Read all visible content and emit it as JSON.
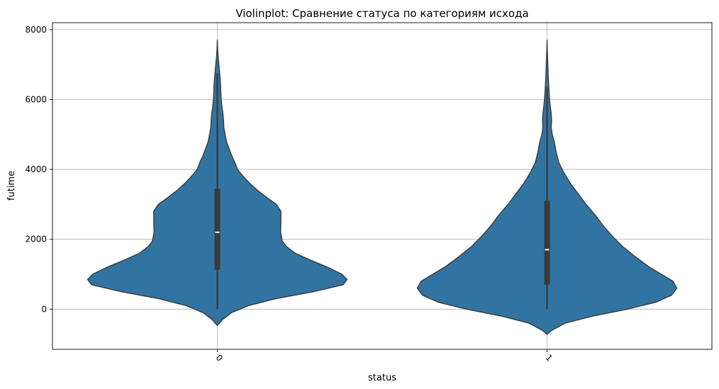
{
  "chart_data": {
    "type": "violin",
    "title": "Violinplot: Сравнение статуса по категориям исхода",
    "xlabel": "status",
    "ylabel": "futime",
    "categories": [
      "0",
      "1"
    ],
    "ylim": [
      -1150,
      8200
    ],
    "yticks": [
      0,
      2000,
      4000,
      6000,
      8000
    ],
    "grid": true,
    "color": "#3274a1",
    "edge_color": "#3a3a3a",
    "violins": [
      {
        "category": "0",
        "quartiles": [
          1130,
          2200,
          3450
        ],
        "whiskers": [
          0,
          6750
        ],
        "range": [
          -470,
          7700
        ],
        "density": [
          [
            -470,
            0.0
          ],
          [
            -300,
            0.04
          ],
          [
            -100,
            0.11
          ],
          [
            100,
            0.24
          ],
          [
            300,
            0.45
          ],
          [
            500,
            0.74
          ],
          [
            700,
            0.97
          ],
          [
            850,
            1.0
          ],
          [
            1000,
            0.96
          ],
          [
            1200,
            0.85
          ],
          [
            1400,
            0.72
          ],
          [
            1600,
            0.6
          ],
          [
            1800,
            0.53
          ],
          [
            1950,
            0.5
          ],
          [
            2200,
            0.488
          ],
          [
            2500,
            0.49
          ],
          [
            2800,
            0.49
          ],
          [
            3000,
            0.455
          ],
          [
            3200,
            0.38
          ],
          [
            3400,
            0.31
          ],
          [
            3600,
            0.25
          ],
          [
            3800,
            0.2
          ],
          [
            4000,
            0.155
          ],
          [
            4200,
            0.135
          ],
          [
            4400,
            0.11
          ],
          [
            4600,
            0.09
          ],
          [
            4800,
            0.07
          ],
          [
            5000,
            0.06
          ],
          [
            5200,
            0.05
          ],
          [
            5400,
            0.048
          ],
          [
            5600,
            0.043
          ],
          [
            5800,
            0.035
          ],
          [
            6000,
            0.03
          ],
          [
            6200,
            0.027
          ],
          [
            6400,
            0.025
          ],
          [
            6600,
            0.022
          ],
          [
            6800,
            0.017
          ],
          [
            7000,
            0.012
          ],
          [
            7200,
            0.007
          ],
          [
            7400,
            0.003
          ],
          [
            7700,
            0.0
          ]
        ]
      },
      {
        "category": "1",
        "quartiles": [
          700,
          1700,
          3100
        ],
        "whiskers": [
          0,
          6350
        ],
        "range": [
          -720,
          7700
        ],
        "density": [
          [
            -720,
            0.0
          ],
          [
            -600,
            0.04
          ],
          [
            -400,
            0.14
          ],
          [
            -200,
            0.35
          ],
          [
            0,
            0.62
          ],
          [
            200,
            0.84
          ],
          [
            400,
            0.96
          ],
          [
            600,
            1.0
          ],
          [
            800,
            0.97
          ],
          [
            1000,
            0.88
          ],
          [
            1200,
            0.79
          ],
          [
            1500,
            0.68
          ],
          [
            1800,
            0.58
          ],
          [
            2100,
            0.5
          ],
          [
            2400,
            0.43
          ],
          [
            2700,
            0.37
          ],
          [
            3000,
            0.3
          ],
          [
            3300,
            0.24
          ],
          [
            3600,
            0.18
          ],
          [
            3900,
            0.13
          ],
          [
            4200,
            0.09
          ],
          [
            4500,
            0.07
          ],
          [
            4800,
            0.055
          ],
          [
            5000,
            0.04
          ],
          [
            5200,
            0.032
          ],
          [
            5400,
            0.035
          ],
          [
            5600,
            0.032
          ],
          [
            5800,
            0.025
          ],
          [
            6000,
            0.02
          ],
          [
            6200,
            0.016
          ],
          [
            6400,
            0.013
          ],
          [
            6600,
            0.01
          ],
          [
            6800,
            0.008
          ],
          [
            7000,
            0.006
          ],
          [
            7200,
            0.004
          ],
          [
            7400,
            0.002
          ],
          [
            7700,
            0.0
          ]
        ]
      }
    ]
  }
}
